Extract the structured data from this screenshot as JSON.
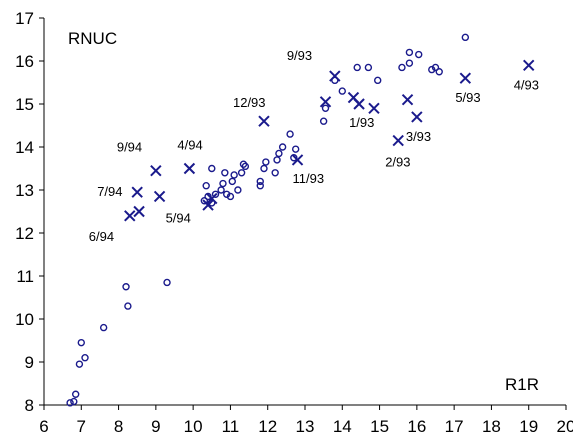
{
  "chart_data": {
    "type": "scatter",
    "title": "",
    "xlabel": "R1R",
    "ylabel": "RNUC",
    "xlim": [
      6,
      20
    ],
    "ylim": [
      8,
      17
    ],
    "x_ticks": [
      6,
      7,
      8,
      9,
      10,
      11,
      12,
      13,
      14,
      15,
      16,
      17,
      18,
      19,
      20
    ],
    "y_ticks": [
      8,
      9,
      10,
      11,
      12,
      13,
      14,
      15,
      16,
      17
    ],
    "grid": false,
    "legend": "none",
    "colors": {
      "markers": "#1a1a8c",
      "axes": "#000000"
    },
    "series": [
      {
        "marker": "circle",
        "points": [
          [
            6.7,
            8.05
          ],
          [
            6.8,
            8.08
          ],
          [
            6.85,
            8.25
          ],
          [
            6.95,
            8.95
          ],
          [
            7.0,
            9.45
          ],
          [
            7.1,
            9.1
          ],
          [
            7.6,
            9.8
          ],
          [
            8.2,
            10.75
          ],
          [
            8.25,
            10.3
          ],
          [
            9.3,
            10.85
          ],
          [
            10.3,
            12.75
          ],
          [
            10.35,
            13.1
          ],
          [
            10.4,
            12.85
          ],
          [
            10.5,
            13.5
          ],
          [
            10.5,
            12.7
          ],
          [
            10.6,
            12.9
          ],
          [
            10.75,
            13.0
          ],
          [
            10.8,
            13.15
          ],
          [
            10.85,
            13.4
          ],
          [
            10.9,
            12.9
          ],
          [
            11.0,
            12.85
          ],
          [
            11.05,
            13.2
          ],
          [
            11.1,
            13.35
          ],
          [
            11.2,
            13.0
          ],
          [
            11.3,
            13.4
          ],
          [
            11.35,
            13.6
          ],
          [
            11.4,
            13.55
          ],
          [
            11.8,
            13.1
          ],
          [
            11.8,
            13.2
          ],
          [
            11.9,
            13.5
          ],
          [
            11.95,
            13.65
          ],
          [
            12.2,
            13.4
          ],
          [
            12.25,
            13.7
          ],
          [
            12.3,
            13.85
          ],
          [
            12.4,
            14.0
          ],
          [
            12.6,
            14.3
          ],
          [
            12.7,
            13.75
          ],
          [
            12.75,
            13.95
          ],
          [
            13.5,
            14.6
          ],
          [
            13.55,
            14.9
          ],
          [
            13.8,
            15.55
          ],
          [
            14.0,
            15.3
          ],
          [
            14.4,
            15.85
          ],
          [
            14.7,
            15.85
          ],
          [
            14.95,
            15.55
          ],
          [
            15.6,
            15.85
          ],
          [
            15.8,
            15.95
          ],
          [
            15.8,
            16.2
          ],
          [
            16.05,
            16.15
          ],
          [
            16.4,
            15.8
          ],
          [
            16.5,
            15.85
          ],
          [
            16.6,
            15.75
          ],
          [
            17.3,
            16.55
          ]
        ]
      },
      {
        "marker": "cross",
        "points": [
          {
            "x": 8.5,
            "y": 12.95,
            "label": "7/94"
          },
          {
            "x": 8.3,
            "y": 12.4,
            "label": "6/94"
          },
          {
            "x": 8.55,
            "y": 12.5,
            "label": ""
          },
          {
            "x": 9.0,
            "y": 13.45,
            "label": "9/94"
          },
          {
            "x": 9.1,
            "y": 12.85,
            "label": "5/94"
          },
          {
            "x": 9.9,
            "y": 13.5,
            "label": "4/94"
          },
          {
            "x": 10.4,
            "y": 12.65,
            "label": ""
          },
          {
            "x": 10.5,
            "y": 12.8,
            "label": ""
          },
          {
            "x": 11.9,
            "y": 14.6,
            "label": "12/93"
          },
          {
            "x": 12.8,
            "y": 13.7,
            "label": "11/93"
          },
          {
            "x": 13.55,
            "y": 15.05,
            "label": ""
          },
          {
            "x": 13.8,
            "y": 15.65,
            "label": "9/93"
          },
          {
            "x": 14.3,
            "y": 15.15,
            "label": ""
          },
          {
            "x": 14.45,
            "y": 15.0,
            "label": "1/93"
          },
          {
            "x": 14.85,
            "y": 14.9,
            "label": ""
          },
          {
            "x": 15.5,
            "y": 14.15,
            "label": "2/93"
          },
          {
            "x": 15.75,
            "y": 15.1,
            "label": ""
          },
          {
            "x": 16.0,
            "y": 14.7,
            "label": "3/93"
          },
          {
            "x": 17.3,
            "y": 15.6,
            "label": "5/93"
          },
          {
            "x": 19.0,
            "y": 15.9,
            "label": "4/93"
          }
        ]
      }
    ]
  }
}
